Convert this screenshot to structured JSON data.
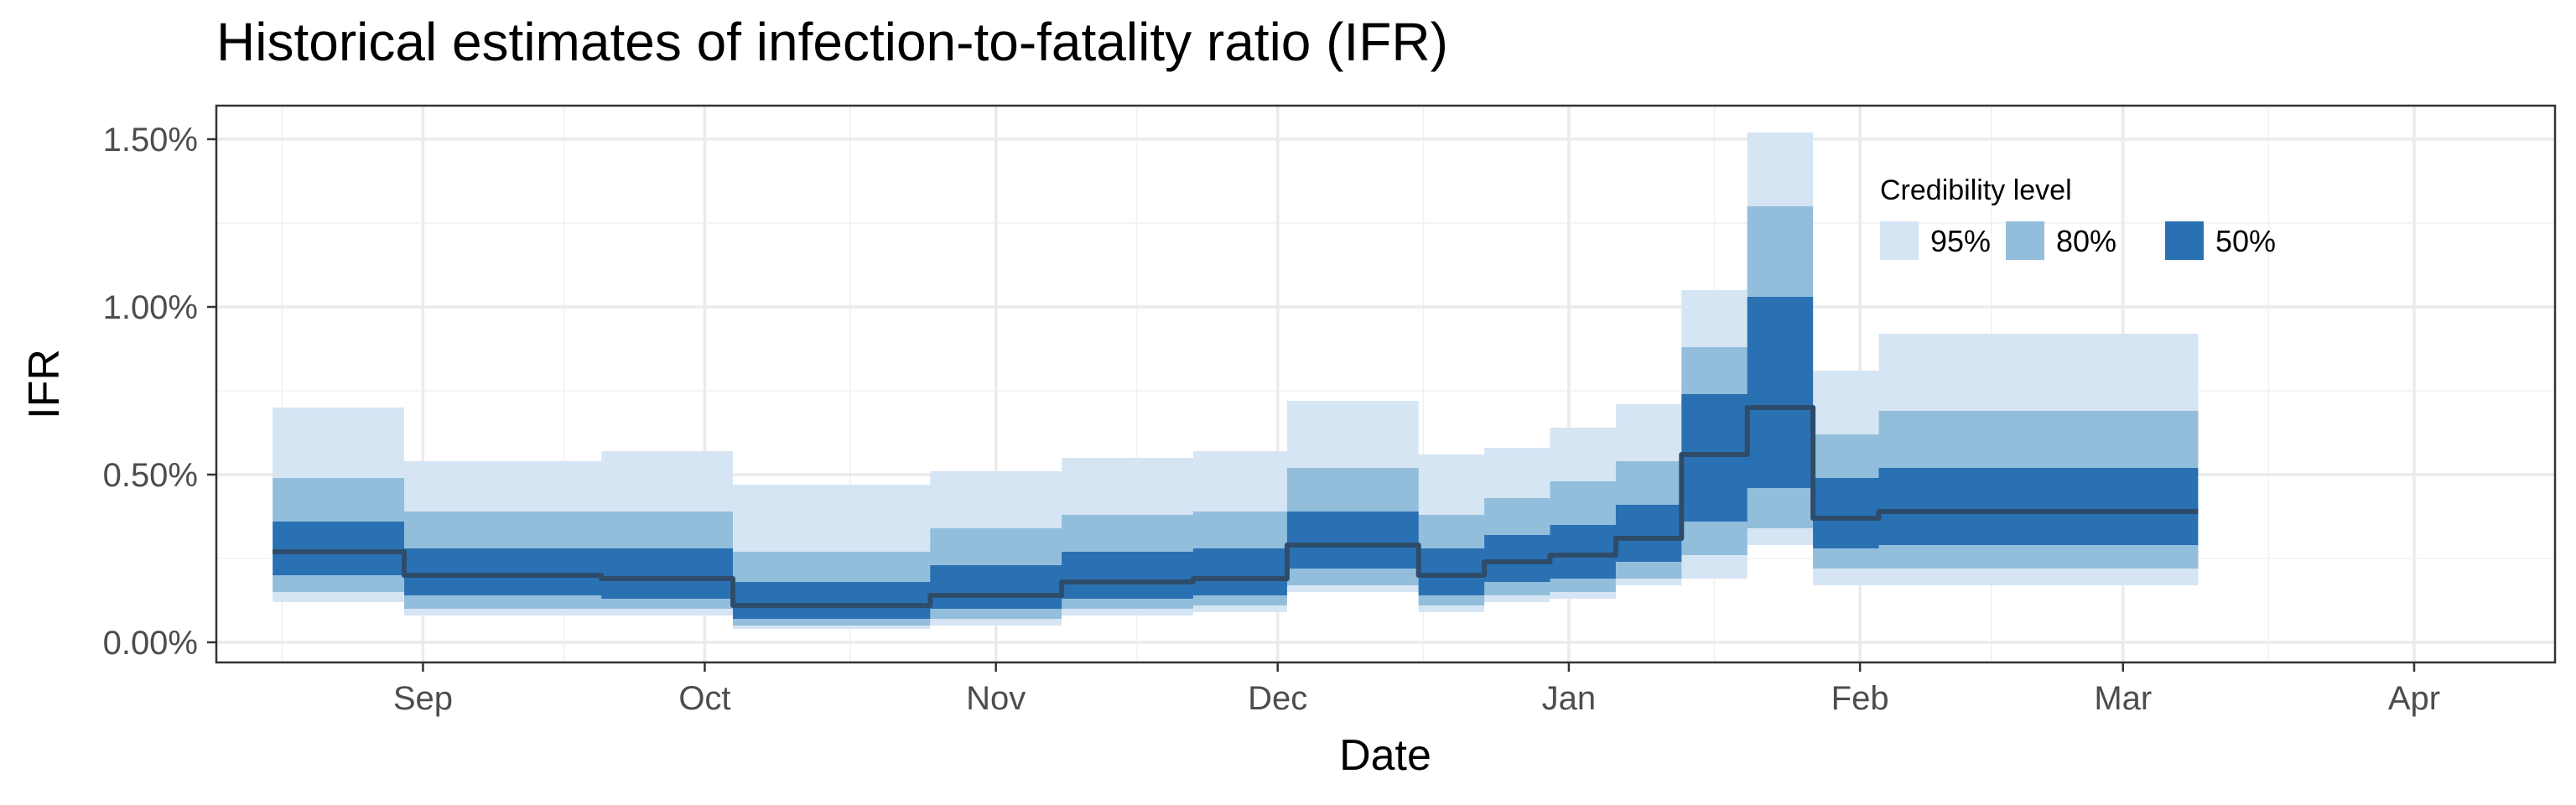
{
  "chart_data": {
    "type": "area",
    "title": "Historical estimates of infection-to-fatality ratio (IFR)",
    "xlabel": "Date",
    "ylabel": "IFR",
    "x_ticks": [
      {
        "date": "2020-09-01",
        "label": "Sep"
      },
      {
        "date": "2020-10-01",
        "label": "Oct"
      },
      {
        "date": "2020-11-01",
        "label": "Nov"
      },
      {
        "date": "2020-12-01",
        "label": "Dec"
      },
      {
        "date": "2021-01-01",
        "label": "Jan"
      },
      {
        "date": "2021-02-01",
        "label": "Feb"
      },
      {
        "date": "2021-03-01",
        "label": "Mar"
      },
      {
        "date": "2021-04-01",
        "label": "Apr"
      }
    ],
    "y_ticks": [
      {
        "value": 0,
        "label": "0.00%"
      },
      {
        "value": 0.5,
        "label": "0.50%"
      },
      {
        "value": 1.0,
        "label": "1.00%"
      },
      {
        "value": 1.5,
        "label": "1.50%"
      }
    ],
    "xlim": [
      "2020-08-10",
      "2021-04-16"
    ],
    "ylim": [
      -0.06,
      1.6
    ],
    "y_unit": "%",
    "grid": true,
    "legend": {
      "title": "Credibility level",
      "placement": "top-right",
      "items": [
        {
          "label": "95%",
          "color": "#d6e5f4"
        },
        {
          "label": "80%",
          "color": "#92bedc"
        },
        {
          "label": "50%",
          "color": "#2a71b3"
        }
      ]
    },
    "colors": {
      "ci95": "#d6e5f4",
      "ci80": "#92bedc",
      "ci50": "#2a71b3",
      "median": "#2e4c6a"
    },
    "segments": [
      {
        "start": "2020-08-16",
        "end": "2020-08-29",
        "median": 0.27,
        "ci50": [
          0.2,
          0.36
        ],
        "ci80": [
          0.15,
          0.49
        ],
        "ci95": [
          0.12,
          0.7
        ]
      },
      {
        "start": "2020-08-30",
        "end": "2020-09-19",
        "median": 0.2,
        "ci50": [
          0.14,
          0.28
        ],
        "ci80": [
          0.1,
          0.39
        ],
        "ci95": [
          0.08,
          0.54
        ]
      },
      {
        "start": "2020-09-20",
        "end": "2020-10-03",
        "median": 0.19,
        "ci50": [
          0.13,
          0.28
        ],
        "ci80": [
          0.1,
          0.39
        ],
        "ci95": [
          0.08,
          0.57
        ]
      },
      {
        "start": "2020-10-04",
        "end": "2020-10-24",
        "median": 0.11,
        "ci50": [
          0.07,
          0.18
        ],
        "ci80": [
          0.05,
          0.27
        ],
        "ci95": [
          0.04,
          0.47
        ]
      },
      {
        "start": "2020-10-25",
        "end": "2020-11-07",
        "median": 0.14,
        "ci50": [
          0.1,
          0.23
        ],
        "ci80": [
          0.07,
          0.34
        ],
        "ci95": [
          0.05,
          0.51
        ]
      },
      {
        "start": "2020-11-08",
        "end": "2020-11-21",
        "median": 0.18,
        "ci50": [
          0.13,
          0.27
        ],
        "ci80": [
          0.1,
          0.38
        ],
        "ci95": [
          0.08,
          0.55
        ]
      },
      {
        "start": "2020-11-22",
        "end": "2020-12-01",
        "median": 0.19,
        "ci50": [
          0.14,
          0.28
        ],
        "ci80": [
          0.11,
          0.39
        ],
        "ci95": [
          0.09,
          0.57
        ]
      },
      {
        "start": "2020-12-02",
        "end": "2020-12-15",
        "median": 0.29,
        "ci50": [
          0.22,
          0.39
        ],
        "ci80": [
          0.17,
          0.52
        ],
        "ci95": [
          0.15,
          0.72
        ]
      },
      {
        "start": "2020-12-16",
        "end": "2020-12-22",
        "median": 0.2,
        "ci50": [
          0.14,
          0.28
        ],
        "ci80": [
          0.11,
          0.38
        ],
        "ci95": [
          0.09,
          0.56
        ]
      },
      {
        "start": "2020-12-23",
        "end": "2020-12-29",
        "median": 0.24,
        "ci50": [
          0.18,
          0.32
        ],
        "ci80": [
          0.14,
          0.43
        ],
        "ci95": [
          0.12,
          0.58
        ]
      },
      {
        "start": "2020-12-30",
        "end": "2021-01-05",
        "median": 0.26,
        "ci50": [
          0.19,
          0.35
        ],
        "ci80": [
          0.15,
          0.48
        ],
        "ci95": [
          0.13,
          0.64
        ]
      },
      {
        "start": "2021-01-06",
        "end": "2021-01-12",
        "median": 0.31,
        "ci50": [
          0.24,
          0.41
        ],
        "ci80": [
          0.19,
          0.54
        ],
        "ci95": [
          0.17,
          0.71
        ]
      },
      {
        "start": "2021-01-13",
        "end": "2021-01-19",
        "median": 0.56,
        "ci50": [
          0.36,
          0.74
        ],
        "ci80": [
          0.26,
          0.88
        ],
        "ci95": [
          0.19,
          1.05
        ]
      },
      {
        "start": "2021-01-20",
        "end": "2021-01-26",
        "median": 0.7,
        "ci50": [
          0.46,
          1.03
        ],
        "ci80": [
          0.34,
          1.3
        ],
        "ci95": [
          0.29,
          1.52
        ]
      },
      {
        "start": "2021-01-27",
        "end": "2021-02-02",
        "median": 0.37,
        "ci50": [
          0.28,
          0.49
        ],
        "ci80": [
          0.22,
          0.62
        ],
        "ci95": [
          0.17,
          0.81
        ]
      },
      {
        "start": "2021-02-03",
        "end": "2021-03-08",
        "median": 0.39,
        "ci50": [
          0.29,
          0.52
        ],
        "ci80": [
          0.22,
          0.69
        ],
        "ci95": [
          0.17,
          0.92
        ]
      }
    ]
  }
}
